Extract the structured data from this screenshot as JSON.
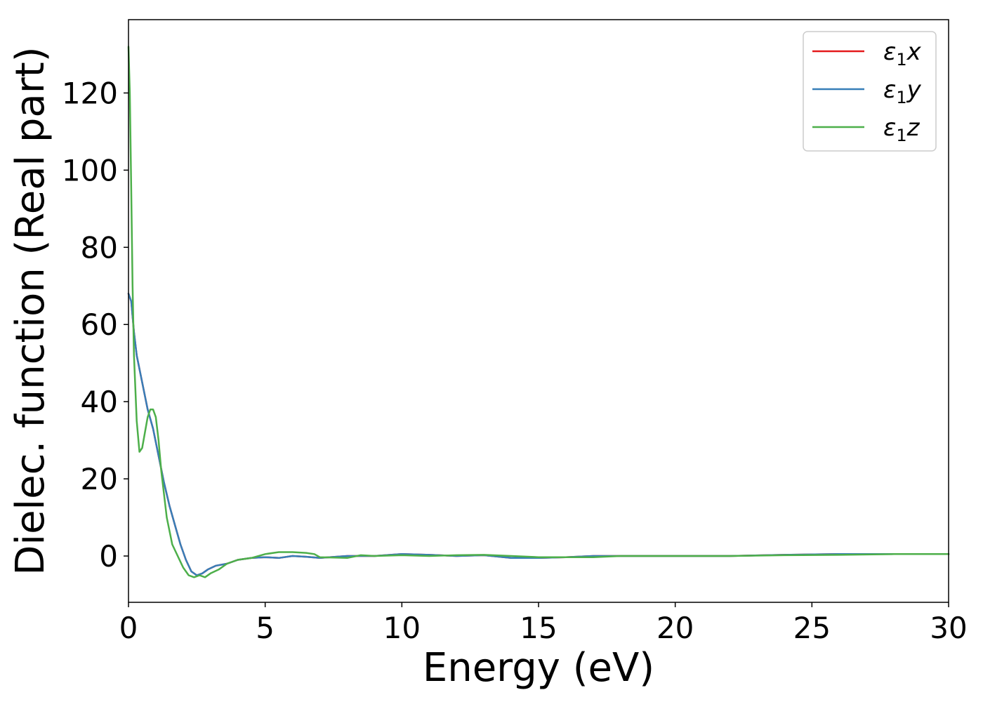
{
  "chart_data": {
    "type": "line",
    "title": "",
    "xlabel": "Energy (eV)",
    "ylabel": "Dielec. function (Real part)",
    "xlim": [
      0,
      30
    ],
    "ylim": [
      -12,
      139
    ],
    "xticks": [
      0,
      5,
      10,
      15,
      20,
      25,
      30
    ],
    "yticks": [
      0,
      20,
      40,
      60,
      80,
      100,
      120
    ],
    "grid": false,
    "legend_position": "top-right",
    "series": [
      {
        "name": "ε₁x",
        "name_base": "ε",
        "name_sub": "1",
        "name_var": "x",
        "color": "#e41a1c",
        "x": [
          0,
          0.1,
          0.2,
          0.3,
          0.5,
          0.7,
          0.9,
          1.1,
          1.3,
          1.5,
          1.7,
          1.9,
          2.1,
          2.3,
          2.5,
          2.7,
          2.9,
          3.2,
          3.6,
          4.0,
          4.5,
          5.0,
          5.5,
          6.0,
          6.5,
          7.0,
          8.0,
          9.0,
          10.0,
          11.0,
          12.0,
          13.0,
          14.0,
          15.0,
          16.0,
          17.0,
          18.0,
          20.0,
          22.0,
          24.0,
          26.0,
          28.0,
          30.0
        ],
        "y": [
          68,
          66,
          58,
          52,
          45,
          38,
          33,
          26,
          19,
          13,
          8,
          3,
          -1,
          -4,
          -5,
          -4.5,
          -3.5,
          -2.5,
          -2,
          -1,
          -0.5,
          -0.3,
          -0.5,
          0,
          -0.2,
          -0.5,
          0,
          0,
          0.5,
          0.3,
          0,
          0.2,
          -0.5,
          -0.5,
          -0.3,
          0,
          0,
          0,
          0,
          0.3,
          0.5,
          0.5,
          0.5
        ]
      },
      {
        "name": "ε₁y",
        "name_base": "ε",
        "name_sub": "1",
        "name_var": "y",
        "color": "#377eb8",
        "x": [
          0,
          0.1,
          0.2,
          0.3,
          0.5,
          0.7,
          0.9,
          1.1,
          1.3,
          1.5,
          1.7,
          1.9,
          2.1,
          2.3,
          2.5,
          2.7,
          2.9,
          3.2,
          3.6,
          4.0,
          4.5,
          5.0,
          5.5,
          6.0,
          6.5,
          7.0,
          8.0,
          9.0,
          10.0,
          11.0,
          12.0,
          13.0,
          14.0,
          15.0,
          16.0,
          17.0,
          18.0,
          20.0,
          22.0,
          24.0,
          26.0,
          28.0,
          30.0
        ],
        "y": [
          68,
          66,
          58,
          52,
          45,
          38,
          33,
          26,
          19,
          13,
          8,
          3,
          -1,
          -4,
          -5,
          -4.5,
          -3.5,
          -2.5,
          -2,
          -1,
          -0.5,
          -0.3,
          -0.5,
          0,
          -0.2,
          -0.5,
          0,
          0,
          0.5,
          0.3,
          0,
          0.2,
          -0.5,
          -0.5,
          -0.3,
          0,
          0,
          0,
          0,
          0.3,
          0.5,
          0.5,
          0.5
        ]
      },
      {
        "name": "ε₁z",
        "name_base": "ε",
        "name_sub": "1",
        "name_var": "z",
        "color": "#4daf4a",
        "x": [
          0,
          0.05,
          0.1,
          0.15,
          0.2,
          0.3,
          0.4,
          0.5,
          0.6,
          0.7,
          0.8,
          0.9,
          1.0,
          1.1,
          1.2,
          1.4,
          1.6,
          1.8,
          2.0,
          2.2,
          2.4,
          2.6,
          2.8,
          3.0,
          3.3,
          3.6,
          4.0,
          4.5,
          5.0,
          5.5,
          6.0,
          6.5,
          6.8,
          7.0,
          8.0,
          8.5,
          9.0,
          10.0,
          11.0,
          12.0,
          13.0,
          14.0,
          15.0,
          16.0,
          17.0,
          18.0,
          20.0,
          22.0,
          24.0,
          26.0,
          28.0,
          30.0
        ],
        "y": [
          132,
          120,
          95,
          70,
          52,
          35,
          27,
          28,
          32,
          36,
          38,
          38,
          36,
          30,
          22,
          10,
          3,
          0,
          -3,
          -5,
          -5.5,
          -5,
          -5.5,
          -4.5,
          -3.5,
          -2,
          -1,
          -0.5,
          0.5,
          1,
          1,
          0.8,
          0.5,
          -0.3,
          -0.5,
          0.2,
          0,
          0.2,
          0,
          0.2,
          0.3,
          0,
          -0.3,
          -0.3,
          -0.3,
          0,
          0,
          0,
          0.2,
          0.3,
          0.5,
          0.5
        ]
      }
    ]
  }
}
